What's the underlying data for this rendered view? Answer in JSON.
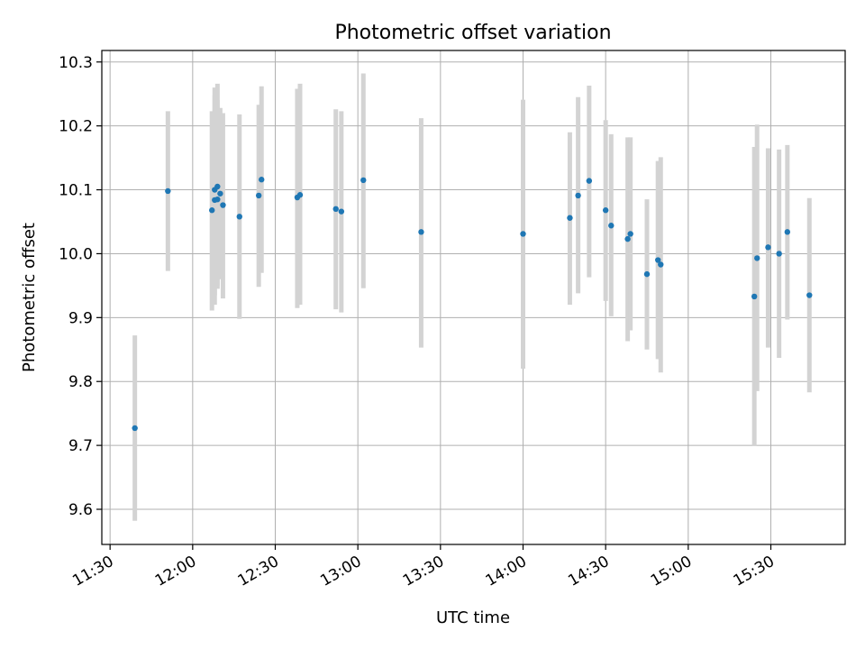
{
  "chart_data": {
    "type": "scatter",
    "title": "Photometric offset variation",
    "xlabel": "UTC time",
    "ylabel": "Photometric offset",
    "xlim": [
      "11:27",
      "15:57"
    ],
    "ylim": [
      9.545,
      10.318
    ],
    "x_ticks": [
      "11:30",
      "12:00",
      "12:30",
      "13:00",
      "13:30",
      "14:00",
      "14:30",
      "15:00",
      "15:30"
    ],
    "y_ticks": [
      "9.6",
      "9.7",
      "9.8",
      "9.9",
      "10.0",
      "10.1",
      "10.2",
      "10.3"
    ],
    "grid": true,
    "colors": {
      "points": "#1f77b4",
      "errorbars": "#d3d3d3"
    },
    "series": [
      {
        "points": [
          {
            "x": "11:39",
            "y": 9.727,
            "ylow": 9.582,
            "yhigh": 9.872
          },
          {
            "x": "11:51",
            "y": 10.098,
            "ylow": 9.973,
            "yhigh": 10.223
          },
          {
            "x": "12:07",
            "y": 10.068,
            "ylow": 9.911,
            "yhigh": 10.223
          },
          {
            "x": "12:08",
            "y": 10.084,
            "ylow": 9.92,
            "yhigh": 10.248
          },
          {
            "x": "12:08",
            "y": 10.1,
            "ylow": 9.935,
            "yhigh": 10.26
          },
          {
            "x": "12:09",
            "y": 10.105,
            "ylow": 9.945,
            "yhigh": 10.266
          },
          {
            "x": "12:09",
            "y": 10.085,
            "ylow": 9.95,
            "yhigh": 10.24
          },
          {
            "x": "12:10",
            "y": 10.094,
            "ylow": 9.96,
            "yhigh": 10.228
          },
          {
            "x": "12:11",
            "y": 10.076,
            "ylow": 9.93,
            "yhigh": 10.22
          },
          {
            "x": "12:17",
            "y": 10.058,
            "ylow": 9.898,
            "yhigh": 10.218
          },
          {
            "x": "12:24",
            "y": 10.091,
            "ylow": 9.948,
            "yhigh": 10.233
          },
          {
            "x": "12:25",
            "y": 10.116,
            "ylow": 9.97,
            "yhigh": 10.262
          },
          {
            "x": "12:38",
            "y": 10.088,
            "ylow": 9.915,
            "yhigh": 10.258
          },
          {
            "x": "12:39",
            "y": 10.092,
            "ylow": 9.92,
            "yhigh": 10.266
          },
          {
            "x": "12:52",
            "y": 10.07,
            "ylow": 9.913,
            "yhigh": 10.226
          },
          {
            "x": "12:54",
            "y": 10.066,
            "ylow": 9.908,
            "yhigh": 10.223
          },
          {
            "x": "13:02",
            "y": 10.115,
            "ylow": 9.946,
            "yhigh": 10.282
          },
          {
            "x": "13:23",
            "y": 10.034,
            "ylow": 9.853,
            "yhigh": 10.212
          },
          {
            "x": "14:00",
            "y": 10.031,
            "ylow": 9.82,
            "yhigh": 10.241
          },
          {
            "x": "14:17",
            "y": 10.056,
            "ylow": 9.92,
            "yhigh": 10.19
          },
          {
            "x": "14:20",
            "y": 10.091,
            "ylow": 9.938,
            "yhigh": 10.245
          },
          {
            "x": "14:24",
            "y": 10.114,
            "ylow": 9.963,
            "yhigh": 10.263
          },
          {
            "x": "14:30",
            "y": 10.068,
            "ylow": 9.926,
            "yhigh": 10.209
          },
          {
            "x": "14:32",
            "y": 10.044,
            "ylow": 9.902,
            "yhigh": 10.187
          },
          {
            "x": "14:38",
            "y": 10.023,
            "ylow": 9.863,
            "yhigh": 10.182
          },
          {
            "x": "14:39",
            "y": 10.031,
            "ylow": 9.88,
            "yhigh": 10.182
          },
          {
            "x": "14:45",
            "y": 9.968,
            "ylow": 9.85,
            "yhigh": 10.085
          },
          {
            "x": "14:49",
            "y": 9.99,
            "ylow": 9.835,
            "yhigh": 10.145
          },
          {
            "x": "14:50",
            "y": 9.983,
            "ylow": 9.814,
            "yhigh": 10.151
          },
          {
            "x": "15:24",
            "y": 9.933,
            "ylow": 9.699,
            "yhigh": 10.167
          },
          {
            "x": "15:25",
            "y": 9.993,
            "ylow": 9.785,
            "yhigh": 10.202
          },
          {
            "x": "15:29",
            "y": 10.01,
            "ylow": 9.853,
            "yhigh": 10.165
          },
          {
            "x": "15:33",
            "y": 10.0,
            "ylow": 9.837,
            "yhigh": 10.163
          },
          {
            "x": "15:36",
            "y": 10.034,
            "ylow": 9.897,
            "yhigh": 10.17
          },
          {
            "x": "15:44",
            "y": 9.935,
            "ylow": 9.783,
            "yhigh": 10.087
          }
        ]
      }
    ]
  }
}
